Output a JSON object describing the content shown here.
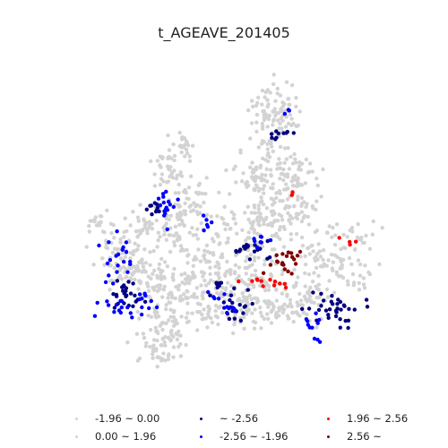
{
  "map": {
    "title": "t_AGEAVE_201405",
    "colors": {
      "neg_small": "#d3d3d3",
      "pos_small": "#d3d3d3",
      "neg_extreme": "#00007f",
      "neg_sig": "#0000ff",
      "pos_sig": "#ff0000",
      "pos_extreme": "#7f0000"
    },
    "legend": [
      {
        "key": "neg_small",
        "label": "-1.96 ~ 0.00"
      },
      {
        "key": "pos_small",
        "label": "0.00 ~ 1.96"
      },
      {
        "key": "neg_extreme",
        "label": "~ -2.56"
      },
      {
        "key": "neg_sig",
        "label": "-2.56 ~ -1.96"
      },
      {
        "key": "pos_sig",
        "label": "1.96 ~ 2.56"
      },
      {
        "key": "pos_extreme",
        "label": "2.56 ~"
      }
    ]
  }
}
